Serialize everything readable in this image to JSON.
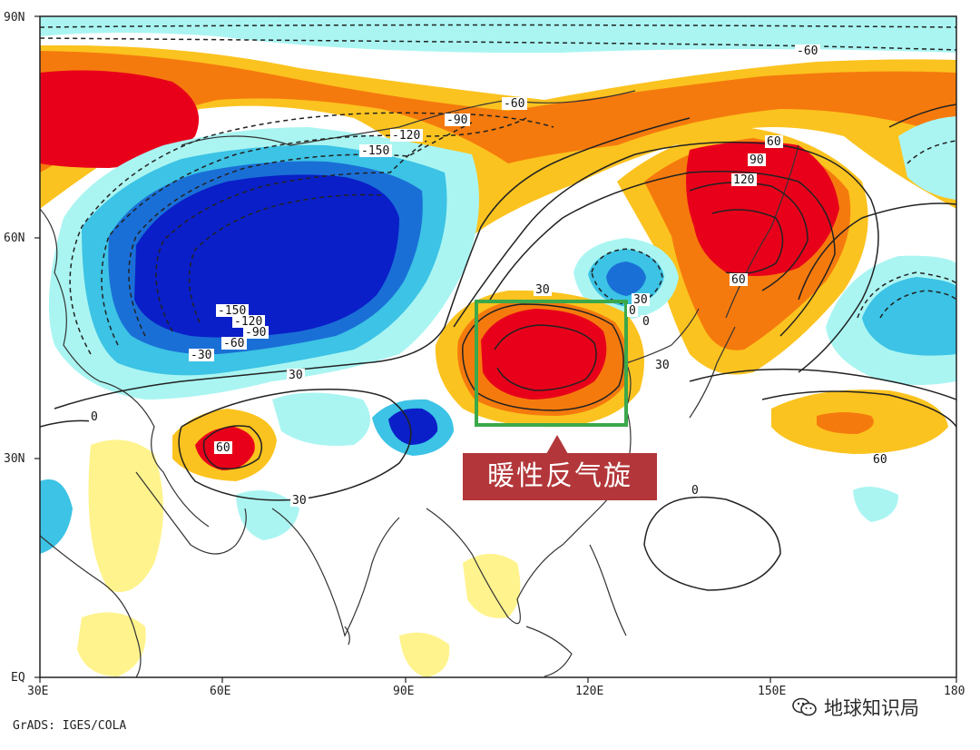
{
  "map": {
    "lat_labels": [
      "90N",
      "60N",
      "30N",
      "EQ"
    ],
    "lon_labels": [
      "30E",
      "60E",
      "90E",
      "120E",
      "150E",
      "180"
    ],
    "contour_labels": [
      "-60",
      "-90",
      "-120",
      "-150",
      "-150",
      "-120",
      "-90",
      "-60",
      "-30",
      "30",
      "60",
      "90",
      "120",
      "60",
      "30",
      "30",
      "0",
      "0",
      "30",
      "60",
      "30",
      "0",
      "60",
      "0",
      "-60"
    ],
    "colors": {
      "strong_positive": "#e8001a",
      "positive": "#f57a0d",
      "weak_positive": "#fbc31f",
      "slight_positive": "#fff38d",
      "slight_negative": "#aaf5f2",
      "weak_negative": "#3cc3e5",
      "negative": "#1a6fd6",
      "strong_negative": "#0a1fc8",
      "contour": "#222222",
      "highlight_box": "#3aa84b"
    }
  },
  "annotation": {
    "callout_text": "暖性反气旋",
    "callout_color": "#b3373a"
  },
  "footer": {
    "credit": "GrADS: IGES/COLA",
    "watermark_text": "地球知识局",
    "watermark_icon": "wechat-icon"
  }
}
